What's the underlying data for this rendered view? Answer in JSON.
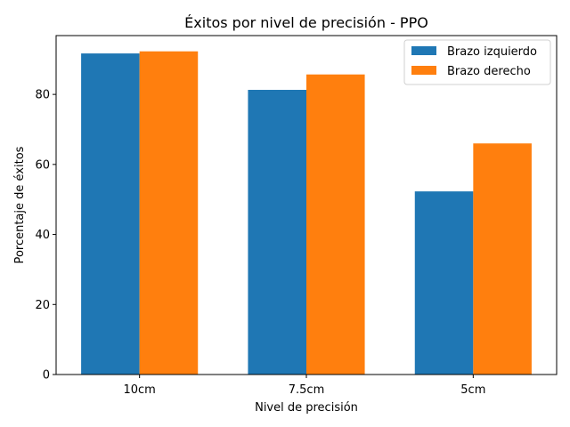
{
  "chart_data": {
    "type": "bar",
    "title": "Éxitos por nivel de precisión - PPO",
    "xlabel": "Nivel de precisión",
    "ylabel": "Porcentaje de éxitos",
    "categories": [
      "10cm",
      "7.5cm",
      "5cm"
    ],
    "series": [
      {
        "name": "Brazo izquierdo",
        "color": "#1f77b4",
        "values": [
          91.7,
          81.3,
          52.3
        ]
      },
      {
        "name": "Brazo derecho",
        "color": "#ff7f0e",
        "values": [
          92.3,
          85.7,
          66.0
        ]
      }
    ],
    "ylim": [
      0,
      96.8
    ],
    "yticks": [
      0,
      20,
      40,
      60,
      80
    ],
    "grid": false,
    "legend_position": "top-right"
  }
}
